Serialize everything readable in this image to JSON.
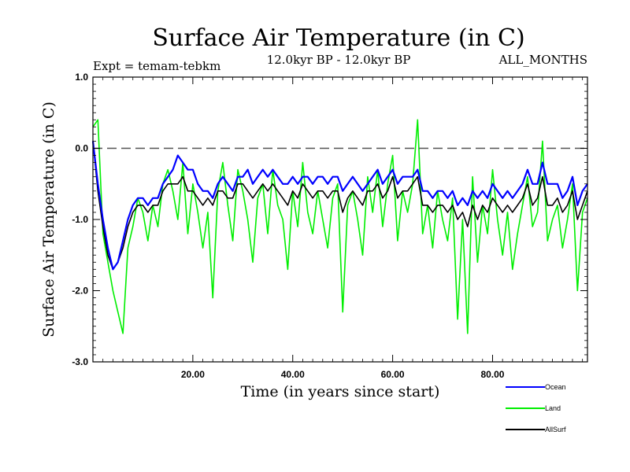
{
  "chart_data": {
    "type": "line",
    "title": "Surface Air Temperature (in C)",
    "experiment": "Expt = temam-tebkm",
    "period": "12.0kyr BP - 12.0kyr BP",
    "months": "ALL_MONTHS",
    "xlabel": "Time (in years since start)",
    "ylabel": "Surface Air Temperature (in C)",
    "xlim": [
      0,
      99
    ],
    "ylim": [
      -3.0,
      1.0
    ],
    "x_ticks": [
      {
        "value": 20,
        "label": "20.00"
      },
      {
        "value": 40,
        "label": "40.00"
      },
      {
        "value": 60,
        "label": "60.00"
      },
      {
        "value": 80,
        "label": "80.00"
      }
    ],
    "y_ticks": [
      {
        "value": 1.0,
        "label": "1.0"
      },
      {
        "value": 0.0,
        "label": "0.0"
      },
      {
        "value": -1.0,
        "label": "-1.0"
      },
      {
        "value": -2.0,
        "label": "-2.0"
      },
      {
        "value": -3.0,
        "label": "-3.0"
      }
    ],
    "reference_line": 0.0,
    "series": [
      {
        "name": "Land",
        "color": "#00ee00",
        "x": [
          0,
          1,
          2,
          3,
          4,
          5,
          6,
          7,
          8,
          9,
          10,
          11,
          12,
          13,
          14,
          15,
          16,
          17,
          18,
          19,
          20,
          21,
          22,
          23,
          24,
          25,
          26,
          27,
          28,
          29,
          30,
          31,
          32,
          33,
          34,
          35,
          36,
          37,
          38,
          39,
          40,
          41,
          42,
          43,
          44,
          45,
          46,
          47,
          48,
          49,
          50,
          51,
          52,
          53,
          54,
          55,
          56,
          57,
          58,
          59,
          60,
          61,
          62,
          63,
          64,
          65,
          66,
          67,
          68,
          69,
          70,
          71,
          72,
          73,
          74,
          75,
          76,
          77,
          78,
          79,
          80,
          81,
          82,
          83,
          84,
          85,
          86,
          87,
          88,
          89,
          90,
          91,
          92,
          93,
          94,
          95,
          96,
          97,
          98,
          99
        ],
        "values": [
          0.3,
          0.4,
          -1.2,
          -1.6,
          -2.0,
          -2.3,
          -2.6,
          -1.4,
          -1.1,
          -0.7,
          -0.9,
          -1.3,
          -0.8,
          -1.1,
          -0.5,
          -0.3,
          -0.6,
          -1.0,
          -0.2,
          -1.2,
          -0.5,
          -0.9,
          -1.4,
          -0.9,
          -2.1,
          -0.6,
          -0.2,
          -0.8,
          -1.3,
          -0.3,
          -0.6,
          -1.0,
          -1.6,
          -0.7,
          -0.5,
          -1.2,
          -0.3,
          -0.8,
          -1.0,
          -1.7,
          -0.6,
          -1.1,
          -0.2,
          -0.9,
          -1.2,
          -0.6,
          -1.0,
          -1.4,
          -0.7,
          -0.5,
          -2.3,
          -0.8,
          -0.6,
          -1.0,
          -1.5,
          -0.4,
          -0.9,
          -0.3,
          -1.1,
          -0.5,
          -0.1,
          -1.3,
          -0.6,
          -0.9,
          -0.5,
          0.4,
          -1.2,
          -0.8,
          -1.4,
          -0.6,
          -1.0,
          -1.3,
          -0.7,
          -2.4,
          -1.0,
          -2.6,
          -0.4,
          -1.6,
          -0.8,
          -1.2,
          -0.3,
          -1.0,
          -1.5,
          -0.9,
          -1.7,
          -1.2,
          -0.8,
          -0.4,
          -1.1,
          -0.9,
          0.1,
          -1.3,
          -1.0,
          -0.8,
          -1.4,
          -1.0,
          -0.5,
          -2.0,
          -0.9,
          -0.7
        ]
      },
      {
        "name": "AllSurf",
        "color": "#000000",
        "x": [
          0,
          1,
          2,
          3,
          4,
          5,
          6,
          7,
          8,
          9,
          10,
          11,
          12,
          13,
          14,
          15,
          16,
          17,
          18,
          19,
          20,
          21,
          22,
          23,
          24,
          25,
          26,
          27,
          28,
          29,
          30,
          31,
          32,
          33,
          34,
          35,
          36,
          37,
          38,
          39,
          40,
          41,
          42,
          43,
          44,
          45,
          46,
          47,
          48,
          49,
          50,
          51,
          52,
          53,
          54,
          55,
          56,
          57,
          58,
          59,
          60,
          61,
          62,
          63,
          64,
          65,
          66,
          67,
          68,
          69,
          70,
          71,
          72,
          73,
          74,
          75,
          76,
          77,
          78,
          79,
          80,
          81,
          82,
          83,
          84,
          85,
          86,
          87,
          88,
          89,
          90,
          91,
          92,
          93,
          94,
          95,
          96,
          97,
          98,
          99
        ],
        "values": [
          0.1,
          -0.6,
          -1.1,
          -1.5,
          -1.7,
          -1.6,
          -1.4,
          -1.1,
          -0.9,
          -0.8,
          -0.8,
          -0.9,
          -0.8,
          -0.8,
          -0.6,
          -0.5,
          -0.5,
          -0.5,
          -0.4,
          -0.6,
          -0.6,
          -0.7,
          -0.8,
          -0.7,
          -0.8,
          -0.6,
          -0.6,
          -0.7,
          -0.7,
          -0.5,
          -0.5,
          -0.6,
          -0.7,
          -0.6,
          -0.5,
          -0.6,
          -0.5,
          -0.6,
          -0.7,
          -0.8,
          -0.6,
          -0.7,
          -0.5,
          -0.6,
          -0.7,
          -0.6,
          -0.6,
          -0.7,
          -0.6,
          -0.6,
          -0.9,
          -0.7,
          -0.6,
          -0.7,
          -0.8,
          -0.6,
          -0.6,
          -0.5,
          -0.7,
          -0.6,
          -0.4,
          -0.7,
          -0.6,
          -0.6,
          -0.5,
          -0.4,
          -0.8,
          -0.8,
          -0.9,
          -0.8,
          -0.8,
          -0.9,
          -0.8,
          -1.0,
          -0.9,
          -1.1,
          -0.8,
          -1.0,
          -0.8,
          -0.9,
          -0.7,
          -0.8,
          -0.9,
          -0.8,
          -0.9,
          -0.8,
          -0.7,
          -0.5,
          -0.8,
          -0.7,
          -0.4,
          -0.8,
          -0.8,
          -0.7,
          -0.9,
          -0.8,
          -0.6,
          -1.0,
          -0.8,
          -0.6
        ]
      },
      {
        "name": "Ocean",
        "color": "#0000ff",
        "x": [
          0,
          1,
          2,
          3,
          4,
          5,
          6,
          7,
          8,
          9,
          10,
          11,
          12,
          13,
          14,
          15,
          16,
          17,
          18,
          19,
          20,
          21,
          22,
          23,
          24,
          25,
          26,
          27,
          28,
          29,
          30,
          31,
          32,
          33,
          34,
          35,
          36,
          37,
          38,
          39,
          40,
          41,
          42,
          43,
          44,
          45,
          46,
          47,
          48,
          49,
          50,
          51,
          52,
          53,
          54,
          55,
          56,
          57,
          58,
          59,
          60,
          61,
          62,
          63,
          64,
          65,
          66,
          67,
          68,
          69,
          70,
          71,
          72,
          73,
          74,
          75,
          76,
          77,
          78,
          79,
          80,
          81,
          82,
          83,
          84,
          85,
          86,
          87,
          88,
          89,
          90,
          91,
          92,
          93,
          94,
          95,
          96,
          97,
          98,
          99
        ],
        "values": [
          0.1,
          -0.5,
          -1.0,
          -1.4,
          -1.7,
          -1.6,
          -1.3,
          -1.0,
          -0.8,
          -0.7,
          -0.7,
          -0.8,
          -0.7,
          -0.7,
          -0.5,
          -0.4,
          -0.3,
          -0.1,
          -0.2,
          -0.3,
          -0.3,
          -0.5,
          -0.6,
          -0.6,
          -0.7,
          -0.5,
          -0.4,
          -0.5,
          -0.6,
          -0.4,
          -0.4,
          -0.3,
          -0.5,
          -0.4,
          -0.3,
          -0.4,
          -0.3,
          -0.4,
          -0.5,
          -0.5,
          -0.4,
          -0.5,
          -0.4,
          -0.4,
          -0.5,
          -0.4,
          -0.4,
          -0.5,
          -0.4,
          -0.4,
          -0.6,
          -0.5,
          -0.4,
          -0.5,
          -0.6,
          -0.5,
          -0.4,
          -0.3,
          -0.5,
          -0.4,
          -0.3,
          -0.5,
          -0.4,
          -0.4,
          -0.4,
          -0.3,
          -0.6,
          -0.6,
          -0.7,
          -0.6,
          -0.6,
          -0.7,
          -0.6,
          -0.8,
          -0.7,
          -0.8,
          -0.6,
          -0.7,
          -0.6,
          -0.7,
          -0.5,
          -0.6,
          -0.7,
          -0.6,
          -0.7,
          -0.6,
          -0.5,
          -0.3,
          -0.5,
          -0.5,
          -0.2,
          -0.5,
          -0.5,
          -0.5,
          -0.7,
          -0.6,
          -0.4,
          -0.8,
          -0.6,
          -0.5
        ]
      }
    ],
    "legend": [
      {
        "name": "Ocean",
        "color": "#0000ff"
      },
      {
        "name": "Land",
        "color": "#00ee00"
      },
      {
        "name": "AllSurf",
        "color": "#000000"
      }
    ]
  }
}
